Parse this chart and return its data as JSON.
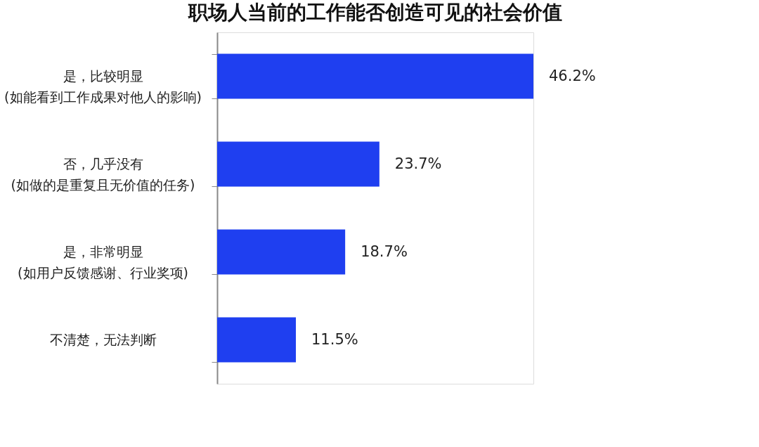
{
  "chart_data": {
    "type": "bar",
    "orientation": "horizontal",
    "title": "职场人当前的工作能否创造可见的社会价值",
    "categories": [
      "是，比较明显\n(如能看到工作成果对他人的影响)",
      "否，几乎没有\n(如做的是重复且无价值的任务)",
      "是，非常明显\n(如用户反馈感谢、行业奖项)",
      "不清楚，无法判断"
    ],
    "values": [
      46.2,
      23.7,
      18.7,
      11.5
    ],
    "value_labels": [
      "46.2%",
      "23.7%",
      "18.7%",
      "11.5%"
    ],
    "color": "#1f3ff0",
    "grid": false
  }
}
